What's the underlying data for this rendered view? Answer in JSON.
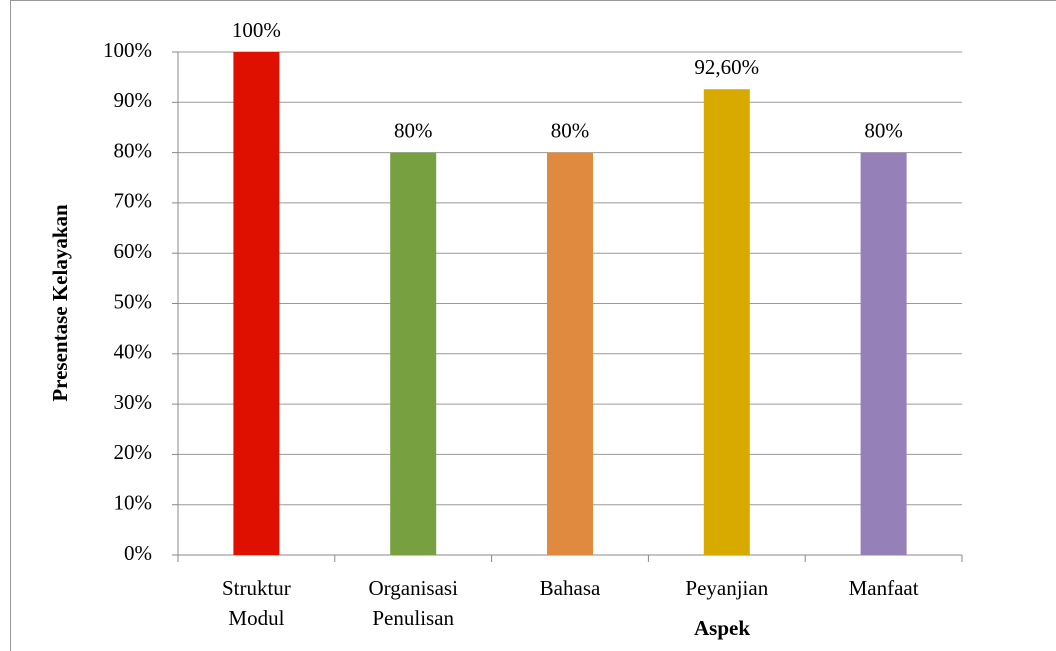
{
  "chart_data": {
    "type": "bar",
    "y_axis_label": "Presentase Kelayakan",
    "x_axis_label": "Aspek",
    "categories": [
      [
        "Struktur",
        "Modul"
      ],
      [
        "Organisasi",
        "Penulisan"
      ],
      [
        "Bahasa"
      ],
      [
        "Peyanjian"
      ],
      [
        "Manfaat"
      ]
    ],
    "values": [
      100,
      80,
      80,
      92.6,
      80
    ],
    "value_labels": [
      "100%",
      "80%",
      "80%",
      "92,60%",
      "80%"
    ],
    "colors": [
      "#e01000",
      "#77a040",
      "#e08a40",
      "#d8aa00",
      "#9580b8"
    ],
    "ylim": [
      0,
      100
    ],
    "yticks": [
      {
        "value": 0,
        "label": "0%"
      },
      {
        "value": 10,
        "label": "10%"
      },
      {
        "value": 20,
        "label": "20%"
      },
      {
        "value": 30,
        "label": "30%"
      },
      {
        "value": 40,
        "label": "40%"
      },
      {
        "value": 50,
        "label": "50%"
      },
      {
        "value": 60,
        "label": "60%"
      },
      {
        "value": 70,
        "label": "70%"
      },
      {
        "value": 80,
        "label": "80%"
      },
      {
        "value": 90,
        "label": "90%"
      },
      {
        "value": 100,
        "label": "100%"
      }
    ],
    "grid": true
  }
}
